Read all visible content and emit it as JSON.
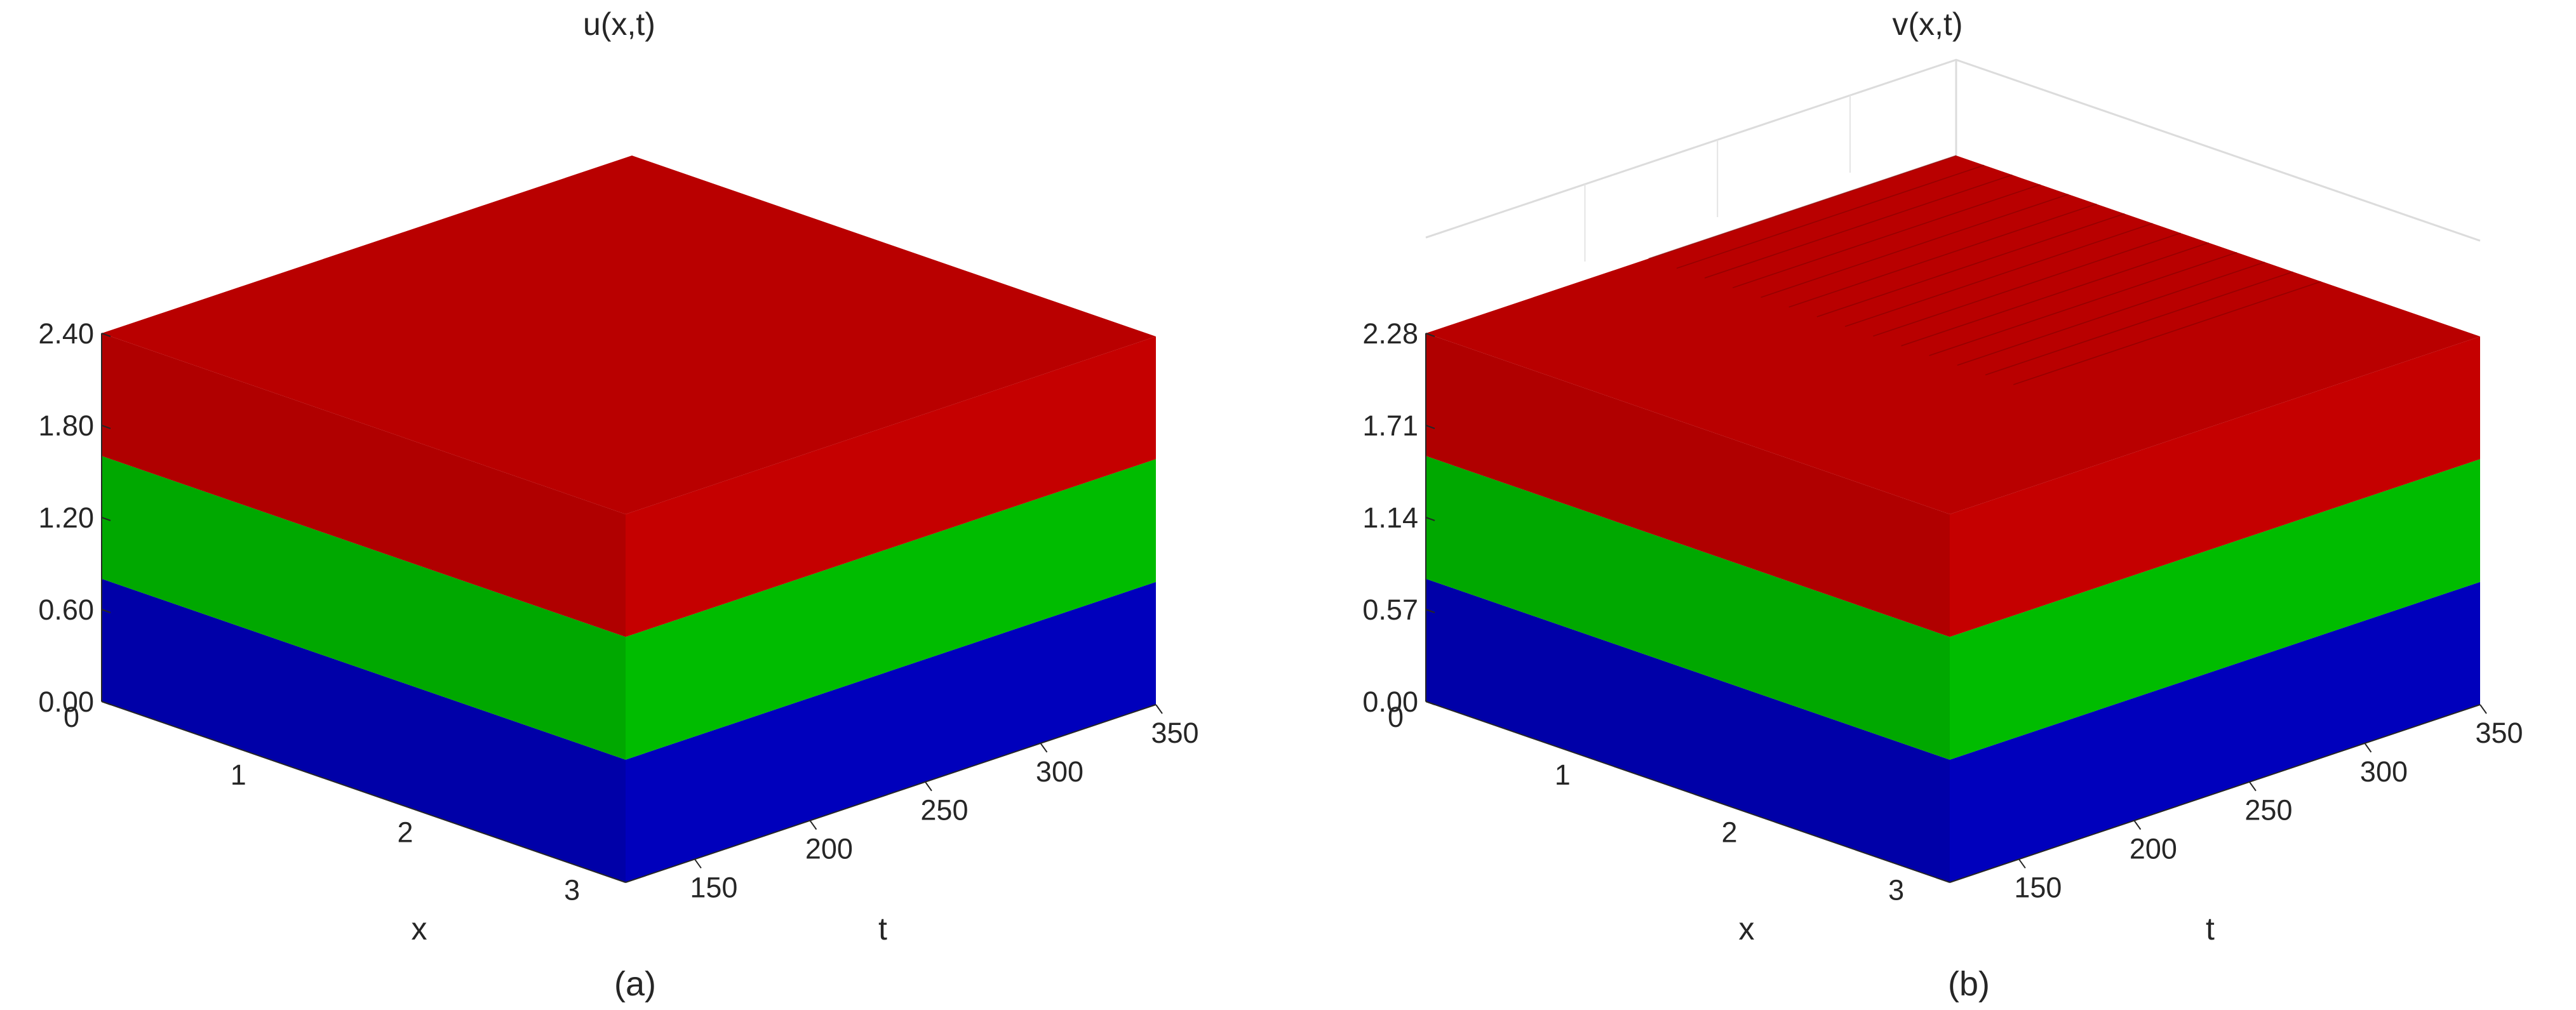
{
  "chart_data": [
    {
      "type": "surface",
      "panel_label": "(a)",
      "title": "u(x,t)",
      "xlabel": "x",
      "tlabel": "t",
      "zlabel": "",
      "x_ticks": [
        "0",
        "1",
        "2",
        "3"
      ],
      "t_ticks": [
        "150",
        "200",
        "250",
        "300",
        "350"
      ],
      "z_ticks": [
        "0.00",
        "0.60",
        "1.20",
        "1.80",
        "2.40"
      ],
      "xlim": [
        0,
        3.14
      ],
      "tlim": [
        120,
        350
      ],
      "zlim": [
        0,
        2.4
      ],
      "layers": [
        {
          "color": "#0000a8",
          "from": 0.0,
          "to": 0.8
        },
        {
          "color": "#00a800",
          "from": 0.8,
          "to": 1.6
        },
        {
          "color": "#b00000",
          "from": 1.6,
          "to": 2.4
        }
      ],
      "surface_level": 2.4,
      "grid": false
    },
    {
      "type": "surface",
      "panel_label": "(b)",
      "title": "v(x,t)",
      "xlabel": "x",
      "tlabel": "t",
      "zlabel": "",
      "x_ticks": [
        "0",
        "1",
        "2",
        "3"
      ],
      "t_ticks": [
        "150",
        "200",
        "250",
        "300",
        "350"
      ],
      "z_ticks": [
        "0.00",
        "0.57",
        "1.14",
        "1.71",
        "2.28"
      ],
      "xlim": [
        0,
        3.14
      ],
      "tlim": [
        120,
        350
      ],
      "zlim": [
        0,
        2.28
      ],
      "layers": [
        {
          "color": "#0000a8",
          "from": 0.0,
          "to": 0.76
        },
        {
          "color": "#00a800",
          "from": 0.76,
          "to": 1.52
        },
        {
          "color": "#b00000",
          "from": 1.52,
          "to": 2.28
        }
      ],
      "surface_level": 2.28,
      "grid": true
    }
  ]
}
